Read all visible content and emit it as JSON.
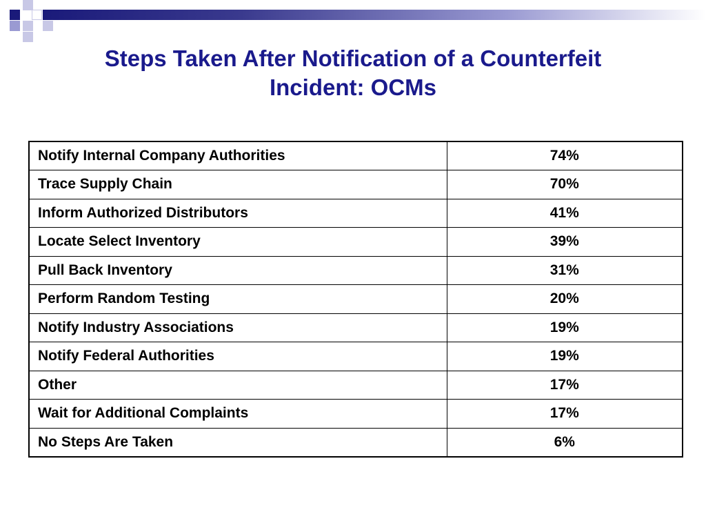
{
  "slide": {
    "title_line1": "Steps Taken After Notification of a Counterfeit",
    "title_line2": "Incident: OCMs"
  },
  "colors": {
    "title": "#1a1a8c",
    "accent_dark": "#1a1a7a",
    "accent_light": "#c8c8e6",
    "accent_mid": "#9a9ad2",
    "table_border": "#000000"
  },
  "table": {
    "rows": [
      {
        "step": "Notify Internal Company Authorities",
        "percent": "74%"
      },
      {
        "step": "Trace Supply Chain",
        "percent": "70%"
      },
      {
        "step": "Inform Authorized Distributors",
        "percent": "41%"
      },
      {
        "step": "Locate Select Inventory",
        "percent": "39%"
      },
      {
        "step": "Pull Back Inventory",
        "percent": "31%"
      },
      {
        "step": "Perform Random Testing",
        "percent": "20%"
      },
      {
        "step": "Notify Industry Associations",
        "percent": "19%"
      },
      {
        "step": "Notify Federal Authorities",
        "percent": "19%"
      },
      {
        "step": "Other",
        "percent": "17%"
      },
      {
        "step": "Wait for Additional Complaints",
        "percent": "17%"
      },
      {
        "step": "No Steps Are Taken",
        "percent": "6%"
      }
    ]
  }
}
